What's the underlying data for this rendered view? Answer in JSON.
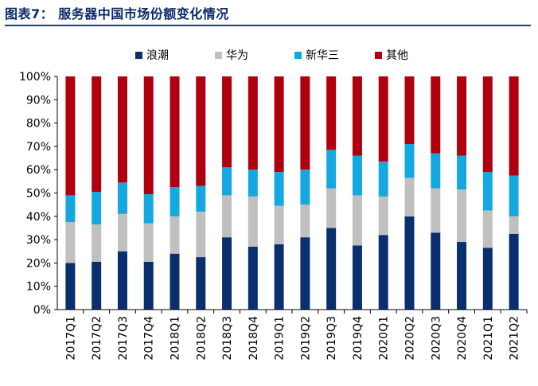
{
  "figure_title": "图表7： 服务器中国市场份额变化情况",
  "chart_data": {
    "type": "bar",
    "stacked": true,
    "categories": [
      "2017Q1",
      "2017Q2",
      "2017Q3",
      "2017Q4",
      "2018Q1",
      "2018Q2",
      "2018Q3",
      "2018Q4",
      "2019Q1",
      "2019Q2",
      "2019Q3",
      "2019Q4",
      "2020Q1",
      "2020Q2",
      "2020Q3",
      "2020Q4",
      "2021Q1",
      "2021Q2"
    ],
    "series": [
      {
        "name": "浪潮",
        "color": "#0a2f6e",
        "values": [
          20,
          20.5,
          25,
          20.5,
          24,
          22.5,
          31,
          27,
          28,
          31,
          35,
          27.5,
          32,
          40,
          33,
          29,
          26.5,
          32.5
        ]
      },
      {
        "name": "华为",
        "color": "#c0c0c0",
        "values": [
          17.5,
          16,
          16,
          16.5,
          16,
          19.5,
          18,
          21.5,
          16.5,
          14,
          17,
          21.5,
          16.5,
          16.5,
          19,
          22.5,
          16,
          7.5
        ]
      },
      {
        "name": "新华三",
        "color": "#15a8e0",
        "values": [
          11.5,
          14,
          13.5,
          12.5,
          12.5,
          11,
          12,
          11.5,
          14.5,
          15,
          16.5,
          17,
          15,
          14.5,
          15,
          14.5,
          16.5,
          17.5
        ]
      },
      {
        "name": "其他",
        "color": "#b00010",
        "values": [
          51,
          49.5,
          45.5,
          50.5,
          47.5,
          47,
          39,
          40,
          41,
          40,
          31.5,
          34,
          36.5,
          29,
          33,
          34,
          41,
          42.5
        ]
      }
    ],
    "ylim": [
      0,
      100
    ],
    "yticks": [
      "0%",
      "10%",
      "20%",
      "30%",
      "40%",
      "50%",
      "60%",
      "70%",
      "80%",
      "90%",
      "100%"
    ],
    "legend_position": "top",
    "grid": false
  }
}
